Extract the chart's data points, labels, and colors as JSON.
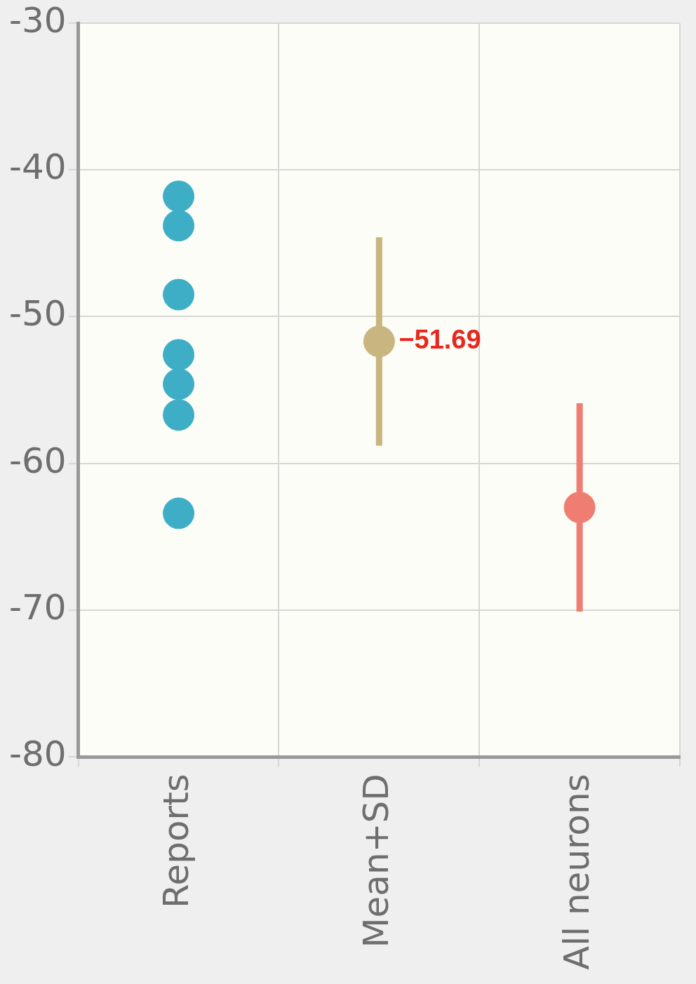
{
  "chart_data": {
    "type": "scatter",
    "categories": [
      "Reports",
      "Mean+SD",
      "All neurons"
    ],
    "series": [
      {
        "x": [
          "Reports",
          "Reports",
          "Reports",
          "Reports",
          "Reports",
          "Reports",
          "Reports"
        ],
        "values": [
          -41.8,
          -43.8,
          -48.5,
          -52.6,
          -54.6,
          -56.7,
          -63.4
        ],
        "color": "#3eaec6"
      },
      {
        "x": [
          "Mean+SD"
        ],
        "values": [
          -51.69
        ],
        "errors": [
          7.1
        ],
        "value_labels": [
          "−51.69"
        ],
        "color": "#c9b57f"
      },
      {
        "x": [
          "All neurons"
        ],
        "values": [
          -63.0
        ],
        "errors": [
          7.1
        ],
        "color": "#ef7d72"
      }
    ],
    "ylim": [
      -80,
      -30
    ],
    "yticks": [
      -80,
      -70,
      -60,
      -50,
      -40,
      -30
    ],
    "grid": true,
    "legend": false,
    "marker": "circle"
  }
}
